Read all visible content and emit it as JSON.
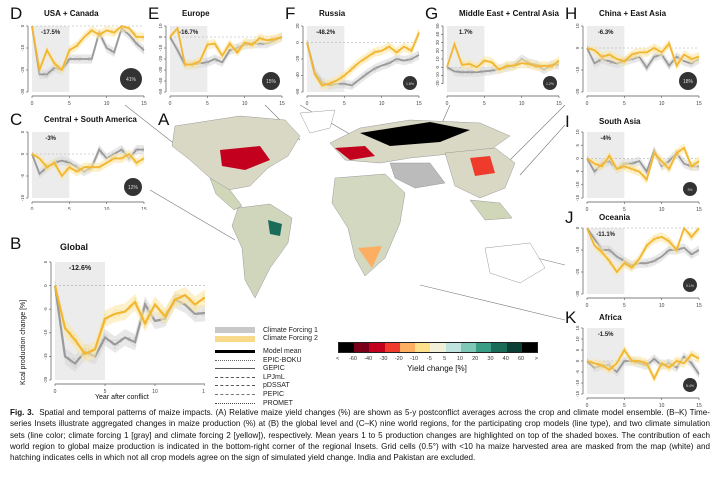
{
  "figure": {
    "map_label": "A",
    "colorbar": {
      "label": "Yield change [%]",
      "ticks": [
        "<",
        "-60",
        "-40",
        "-30",
        "-20",
        "-10",
        "-5",
        "5",
        "10",
        "20",
        "30",
        "40",
        "60",
        ">"
      ],
      "colors": [
        "#000000",
        "#7a0019",
        "#c4001f",
        "#ef3b2c",
        "#fdae61",
        "#fee08b",
        "#f2f0d6",
        "#bfe3de",
        "#7fc8b8",
        "#3a9e87",
        "#1a6b5a",
        "#0b3f35",
        "#000000"
      ]
    },
    "legend": {
      "forcing": [
        {
          "label": "Climate Forcing 1",
          "color": "#c8c8c8"
        },
        {
          "label": "Climate Forcing 2",
          "color": "#f8d98a"
        }
      ],
      "models": [
        {
          "label": "Model mean",
          "dash": "solid-thick"
        },
        {
          "label": "EPIC-BOKU",
          "dash": "dotted"
        },
        {
          "label": "GEPIC",
          "dash": "solid"
        },
        {
          "label": "LPJmL",
          "dash": "short-dash"
        },
        {
          "label": "pDSSAT",
          "dash": "long-dash"
        },
        {
          "label": "PEPIC",
          "dash": "dash-dot"
        },
        {
          "label": "PROMET",
          "dash": "dash-dot-dot"
        }
      ]
    },
    "caption": {
      "fig": "Fig. 3.",
      "text": "Spatial and temporal patterns of maize impacts. (A) Relative maize yield changes (%) are shown as 5-y postconflict averages across the crop and climate model ensemble. (B–K) Time-series Insets illustrate aggregated changes in maize production (%) at (B) the global level and (C–K) nine world regions, for the participating crop models (line type), and two climate simulation sets (line color; climate forcing 1 [gray] and climate forcing 2 [yellow]), respectively. Mean years 1 to 5 production changes are highlighted on top of the shaded boxes. The contribution of each world region to global maize production is indicated in the bottom-right corner of the regional Insets. Grid cells (0.5°) with <10 ha maize harvested area are masked from the map (white) and hatching indicates cells in which not all crop models agree on the sign of simulated yield change. India and Pakistan are excluded."
    },
    "colors": {
      "forcing1": "#9a9a9a",
      "forcing2": "#f2b630",
      "band1": "#d9d9d9",
      "band2": "#fbe7a8",
      "box": "#ececec"
    }
  },
  "chart_data": [
    {
      "id": "B",
      "type": "line",
      "title": "Global",
      "mean_label": "-12.6%",
      "ylabel": "Kcal production change [%]",
      "xlabel": "Year after conflict",
      "ylim": [
        -20,
        5
      ],
      "yticks": [
        5,
        0,
        -5,
        -10,
        -15,
        -20
      ],
      "xticks": [
        0,
        5,
        10,
        15
      ],
      "share": null,
      "series": [
        {
          "name": "Climate Forcing 1",
          "values": [
            0,
            -15,
            -16.5,
            -14,
            -15,
            -11,
            -12.5,
            -11,
            -12,
            -4,
            -7.5,
            -7,
            -3,
            -4,
            -6,
            -5.8
          ]
        },
        {
          "name": "Climate Forcing 2",
          "values": [
            0,
            -9,
            -11.5,
            -14.5,
            -13.5,
            -7,
            -6,
            -5.5,
            -3.5,
            -8,
            -4,
            -6.5,
            -3,
            -2,
            -4,
            -2.5
          ]
        }
      ]
    },
    {
      "id": "D",
      "type": "line",
      "title": "USA + Canada",
      "mean_label": "-17.5%",
      "ylim": [
        -30,
        0
      ],
      "yticks": [
        0,
        -10,
        -20,
        -30
      ],
      "xticks": [
        0,
        5,
        10,
        15
      ],
      "share": "41%",
      "series": [
        {
          "name": "Climate Forcing 1",
          "values": [
            0,
            -22,
            -22,
            -19,
            -20,
            -15,
            -15,
            -15,
            -15,
            -3,
            -10,
            -12,
            -1,
            -4,
            -8,
            -11
          ]
        },
        {
          "name": "Climate Forcing 2",
          "values": [
            0,
            -20,
            -11,
            -17,
            -20,
            -11,
            -9,
            -5,
            -2,
            -4,
            -2,
            -3,
            0,
            -1,
            -5,
            -5
          ]
        }
      ]
    },
    {
      "id": "E",
      "type": "line",
      "title": "Europe",
      "mean_label": "-16.7%",
      "ylim": [
        -50,
        10
      ],
      "yticks": [
        10,
        0,
        -10,
        -20,
        -30,
        -40,
        -50
      ],
      "xticks": [
        0,
        5,
        10,
        15
      ],
      "share": "15%",
      "series": [
        {
          "name": "Climate Forcing 1",
          "values": [
            0,
            -12,
            -25,
            -25,
            -24,
            -23,
            -20,
            -23,
            -12,
            -10,
            -7,
            -6,
            -6,
            -6,
            -3,
            0
          ]
        },
        {
          "name": "Climate Forcing 2",
          "values": [
            0,
            8,
            -25,
            -25,
            -22,
            -7,
            -6,
            -17,
            -6,
            -14,
            -5,
            -7,
            -1,
            -3,
            -2,
            0
          ]
        }
      ]
    },
    {
      "id": "F",
      "type": "line",
      "title": "Russia",
      "mean_label": "-48.2%",
      "ylim": [
        -60,
        20
      ],
      "yticks": [
        20,
        0,
        -20,
        -40,
        -60
      ],
      "xticks": [
        0,
        5,
        10,
        15
      ],
      "share": "1.8%",
      "series": [
        {
          "name": "Climate Forcing 1",
          "values": [
            0,
            -35,
            -48,
            -52,
            -50,
            -50,
            -52,
            -45,
            -38,
            -32,
            -28,
            -25,
            -20,
            -22,
            -20,
            -15
          ]
        },
        {
          "name": "Climate Forcing 2",
          "values": [
            0,
            -38,
            -52,
            -50,
            -46,
            -40,
            -32,
            -24,
            -18,
            -12,
            -10,
            -5,
            -12,
            -5,
            -10,
            12
          ]
        }
      ]
    },
    {
      "id": "G",
      "type": "line",
      "title": "Middle East + Central Asia",
      "mean_label": "1.7%",
      "ylim": [
        -30,
        50
      ],
      "yticks": [
        50,
        40,
        30,
        20,
        10,
        0,
        -10,
        -20
      ],
      "xticks": [
        0,
        5,
        10,
        15
      ],
      "share": "1.2%",
      "series": [
        {
          "name": "Climate Forcing 1",
          "values": [
            0,
            -5,
            -6,
            -6,
            -6,
            -5,
            -4,
            -2,
            0,
            2,
            10,
            5,
            3,
            -3,
            3,
            3
          ]
        },
        {
          "name": "Climate Forcing 2",
          "values": [
            0,
            28,
            3,
            4,
            0,
            8,
            6,
            -3,
            2,
            2,
            5,
            4,
            1,
            2,
            1,
            8
          ]
        }
      ]
    },
    {
      "id": "H",
      "type": "line",
      "title": "China + East Asia",
      "mean_label": "-6.3%",
      "ylim": [
        -20,
        10
      ],
      "yticks": [
        10,
        0,
        -10,
        -20
      ],
      "xticks": [
        0,
        5,
        10,
        15
      ],
      "share": "18%",
      "series": [
        {
          "name": "Climate Forcing 1",
          "values": [
            0,
            -7,
            -5,
            -6,
            -7,
            -6,
            -5,
            -4,
            -9,
            -4,
            -3,
            -8,
            -4,
            -6,
            -7,
            -5
          ]
        },
        {
          "name": "Climate Forcing 2",
          "values": [
            0,
            -1,
            -4,
            -3,
            -5,
            -6,
            -3,
            -2,
            -2,
            0,
            -2,
            2,
            -8,
            -3,
            -5,
            -4
          ]
        }
      ]
    },
    {
      "id": "C",
      "type": "line",
      "title": "Central + South America",
      "mean_label": "-3%",
      "ylim": [
        -10,
        5
      ],
      "yticks": [
        5,
        0,
        -5,
        -10
      ],
      "xticks": [
        0,
        5,
        10,
        15
      ],
      "share": "12%",
      "series": [
        {
          "name": "Climate Forcing 1",
          "values": [
            0,
            -4.5,
            -3,
            -2,
            -1.5,
            -2,
            -3,
            -4,
            -3,
            1,
            -1,
            0,
            1,
            -1,
            1,
            1
          ]
        },
        {
          "name": "Climate Forcing 2",
          "values": [
            0,
            -1,
            -3,
            -2,
            -5,
            -3,
            -4,
            -3,
            -3,
            -3,
            -2,
            -1,
            -1,
            0,
            -2,
            -1
          ]
        }
      ]
    },
    {
      "id": "I",
      "type": "line",
      "title": "South Asia",
      "mean_label": "-4%",
      "ylim": [
        -15,
        10
      ],
      "yticks": [
        10,
        5,
        0,
        -5,
        -10,
        -15
      ],
      "xticks": [
        0,
        5,
        10,
        15
      ],
      "share": "3%",
      "series": [
        {
          "name": "Climate Forcing 1",
          "values": [
            0,
            -5,
            -2,
            -1,
            -4,
            -2,
            -2,
            -1,
            -5,
            3,
            -3,
            -1,
            2,
            -2,
            -3,
            -3
          ]
        },
        {
          "name": "Climate Forcing 2",
          "values": [
            0,
            -2,
            -3,
            1,
            -4,
            -3,
            -4,
            -5,
            -8,
            2,
            -1,
            -4,
            2,
            4,
            -3,
            -1
          ]
        }
      ]
    },
    {
      "id": "J",
      "type": "line",
      "title": "Oceania",
      "mean_label": "-11.1%",
      "ylim": [
        -30,
        0
      ],
      "yticks": [
        0,
        -10,
        -20,
        -30
      ],
      "xticks": [
        0,
        5,
        10,
        15
      ],
      "share": "0.1%",
      "series": [
        {
          "name": "Climate Forcing 1",
          "values": [
            0,
            -5,
            -10,
            -10,
            -13,
            -15,
            -17,
            -16,
            -16,
            -15,
            -13,
            -10,
            -10,
            -9,
            -12,
            -10
          ]
        },
        {
          "name": "Climate Forcing 2",
          "values": [
            0,
            -8,
            -11,
            -15,
            -20,
            -16,
            -18,
            -14,
            -8,
            -5,
            -4,
            -6,
            -10,
            0,
            -4,
            0
          ]
        }
      ]
    },
    {
      "id": "K",
      "type": "line",
      "title": "Africa",
      "mean_label": "-1.5%",
      "ylim": [
        -15,
        15
      ],
      "yticks": [
        15,
        10,
        5,
        0,
        -5,
        -10,
        -15
      ],
      "xticks": [
        0,
        5,
        10,
        15
      ],
      "share": "5.4%",
      "series": [
        {
          "name": "Climate Forcing 1",
          "values": [
            0,
            -3,
            -2,
            -2,
            -5,
            0,
            0,
            -1,
            -2,
            1,
            -2,
            -1,
            -3,
            2,
            -1,
            -6
          ]
        },
        {
          "name": "Climate Forcing 2",
          "values": [
            0,
            -1,
            -2,
            -4,
            -1,
            5,
            0,
            0,
            -1,
            -8,
            -1,
            -3,
            0,
            -1,
            3,
            1
          ]
        }
      ]
    }
  ]
}
